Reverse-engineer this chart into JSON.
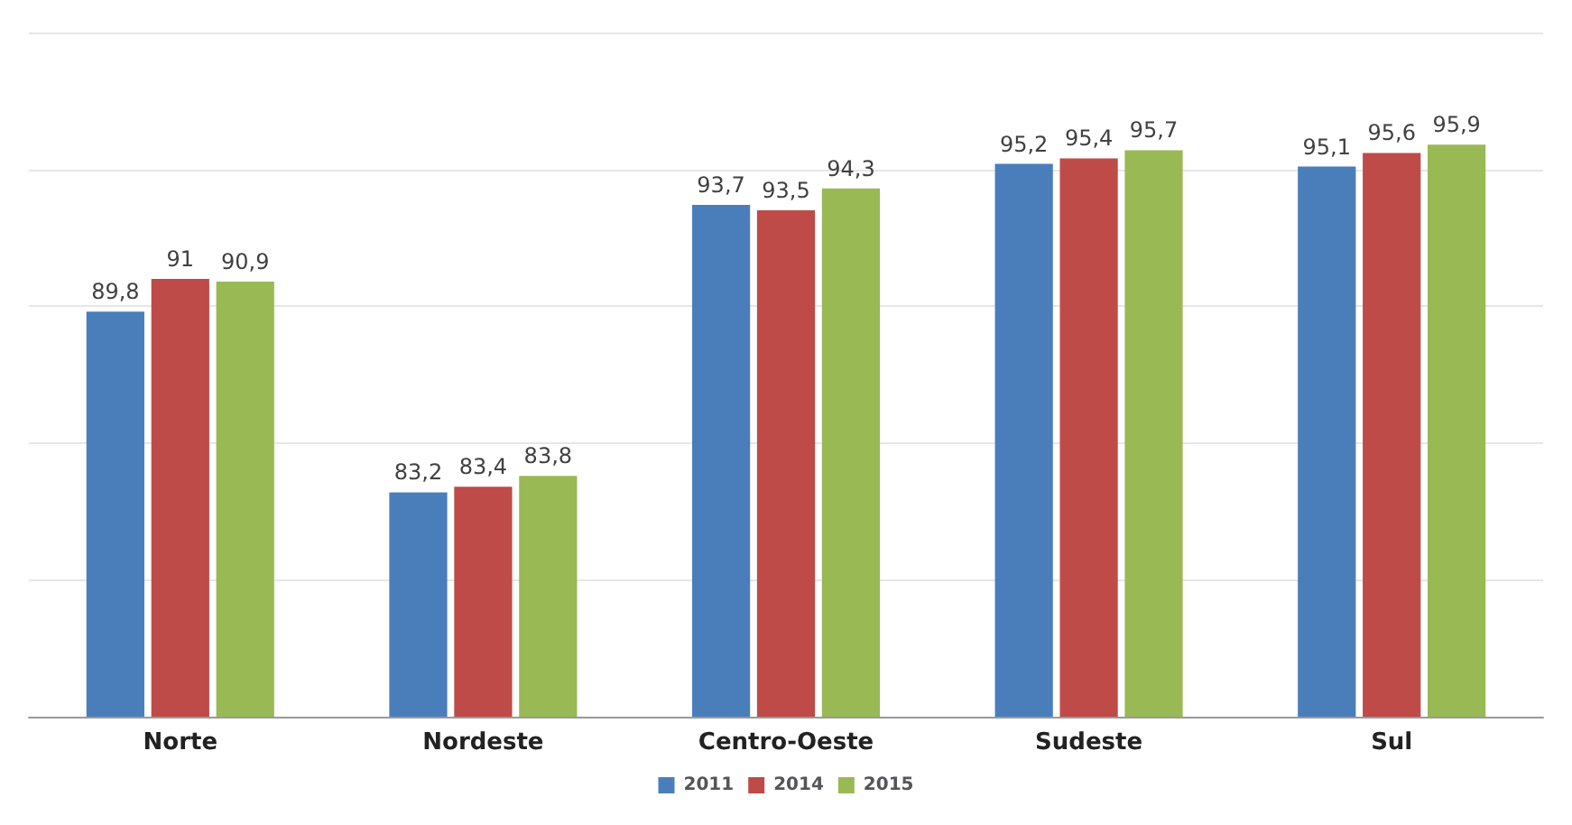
{
  "chart_data": {
    "type": "bar",
    "categories": [
      "Norte",
      "Nordeste",
      "Centro-Oeste",
      "Sudeste",
      "Sul"
    ],
    "series": [
      {
        "name": "2011",
        "color": "#4a7ebb",
        "values": [
          89.8,
          83.2,
          93.7,
          95.2,
          95.1
        ],
        "value_labels": [
          "89,8",
          "83,2",
          "93,7",
          "95,2",
          "95,1"
        ]
      },
      {
        "name": "2014",
        "color": "#be4b48",
        "values": [
          91,
          83.4,
          93.5,
          95.4,
          95.6
        ],
        "value_labels": [
          "91",
          "83,4",
          "93,5",
          "95,4",
          "95,6"
        ]
      },
      {
        "name": "2015",
        "color": "#98b954",
        "values": [
          90.9,
          83.8,
          94.3,
          95.7,
          95.9
        ],
        "value_labels": [
          "90,9",
          "83,8",
          "94,3",
          "95,7",
          "95,9"
        ]
      }
    ],
    "ylim": [
      75,
      100
    ],
    "grid": "y",
    "tick_labels": "x",
    "legend": "bottom"
  }
}
